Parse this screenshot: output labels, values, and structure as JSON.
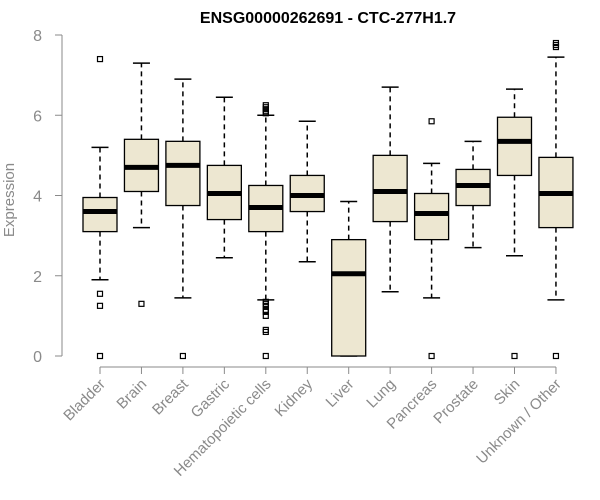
{
  "chart_data": {
    "type": "boxplot",
    "title": "ENSG00000262691 - CTC-277H1.7",
    "xlabel": "",
    "ylabel": "Expression",
    "ylim": [
      0,
      8
    ],
    "yticks": [
      0,
      2,
      4,
      6,
      8
    ],
    "colors": {
      "box_fill": "#ede7d1",
      "axis": "#8a8a8a",
      "stroke": "#000000"
    },
    "categories": [
      "Bladder",
      "Brain",
      "Breast",
      "Gastric",
      "Hematopoietic cells",
      "Kidney",
      "Liver",
      "Lung",
      "Pancreas",
      "Prostate",
      "Skin",
      "Unknown / Other"
    ],
    "boxes": [
      {
        "category": "Bladder",
        "whisker_low": 1.9,
        "q1": 3.1,
        "median": 3.6,
        "q3": 3.95,
        "whisker_high": 5.2,
        "outliers": [
          0,
          1.25,
          1.55,
          7.4
        ]
      },
      {
        "category": "Brain",
        "whisker_low": 3.2,
        "q1": 4.1,
        "median": 4.7,
        "q3": 5.4,
        "whisker_high": 7.3,
        "outliers": [
          1.3
        ]
      },
      {
        "category": "Breast",
        "whisker_low": 1.45,
        "q1": 3.75,
        "median": 4.75,
        "q3": 5.35,
        "whisker_high": 6.9,
        "outliers": [
          0
        ]
      },
      {
        "category": "Gastric",
        "whisker_low": 2.45,
        "q1": 3.4,
        "median": 4.05,
        "q3": 4.75,
        "whisker_high": 6.45,
        "outliers": []
      },
      {
        "category": "Hematopoietic cells",
        "whisker_low": 1.4,
        "q1": 3.1,
        "median": 3.7,
        "q3": 4.25,
        "whisker_high": 6.0,
        "outliers": [
          0,
          0.6,
          0.65,
          1.0,
          1.1,
          1.15,
          1.25,
          1.3,
          1.35,
          6.05,
          6.1,
          6.15,
          6.2,
          6.25
        ]
      },
      {
        "category": "Kidney",
        "whisker_low": 2.35,
        "q1": 3.6,
        "median": 4.0,
        "q3": 4.5,
        "whisker_high": 5.85,
        "outliers": []
      },
      {
        "category": "Liver",
        "whisker_low": 0,
        "q1": 0,
        "median": 2.05,
        "q3": 2.9,
        "whisker_high": 3.85,
        "outliers": []
      },
      {
        "category": "Lung",
        "whisker_low": 1.6,
        "q1": 3.35,
        "median": 4.1,
        "q3": 5.0,
        "whisker_high": 6.7,
        "outliers": []
      },
      {
        "category": "Pancreas",
        "whisker_low": 1.45,
        "q1": 2.9,
        "median": 3.55,
        "q3": 4.05,
        "whisker_high": 4.8,
        "outliers": [
          0,
          5.85
        ]
      },
      {
        "category": "Prostate",
        "whisker_low": 2.7,
        "q1": 3.75,
        "median": 4.25,
        "q3": 4.65,
        "whisker_high": 5.35,
        "outliers": []
      },
      {
        "category": "Skin",
        "whisker_low": 2.5,
        "q1": 4.5,
        "median": 5.35,
        "q3": 5.95,
        "whisker_high": 6.65,
        "outliers": [
          0
        ]
      },
      {
        "category": "Unknown / Other",
        "whisker_low": 1.4,
        "q1": 3.2,
        "median": 4.05,
        "q3": 4.95,
        "whisker_high": 7.45,
        "outliers": [
          0,
          7.7,
          7.75,
          7.8
        ]
      }
    ]
  }
}
